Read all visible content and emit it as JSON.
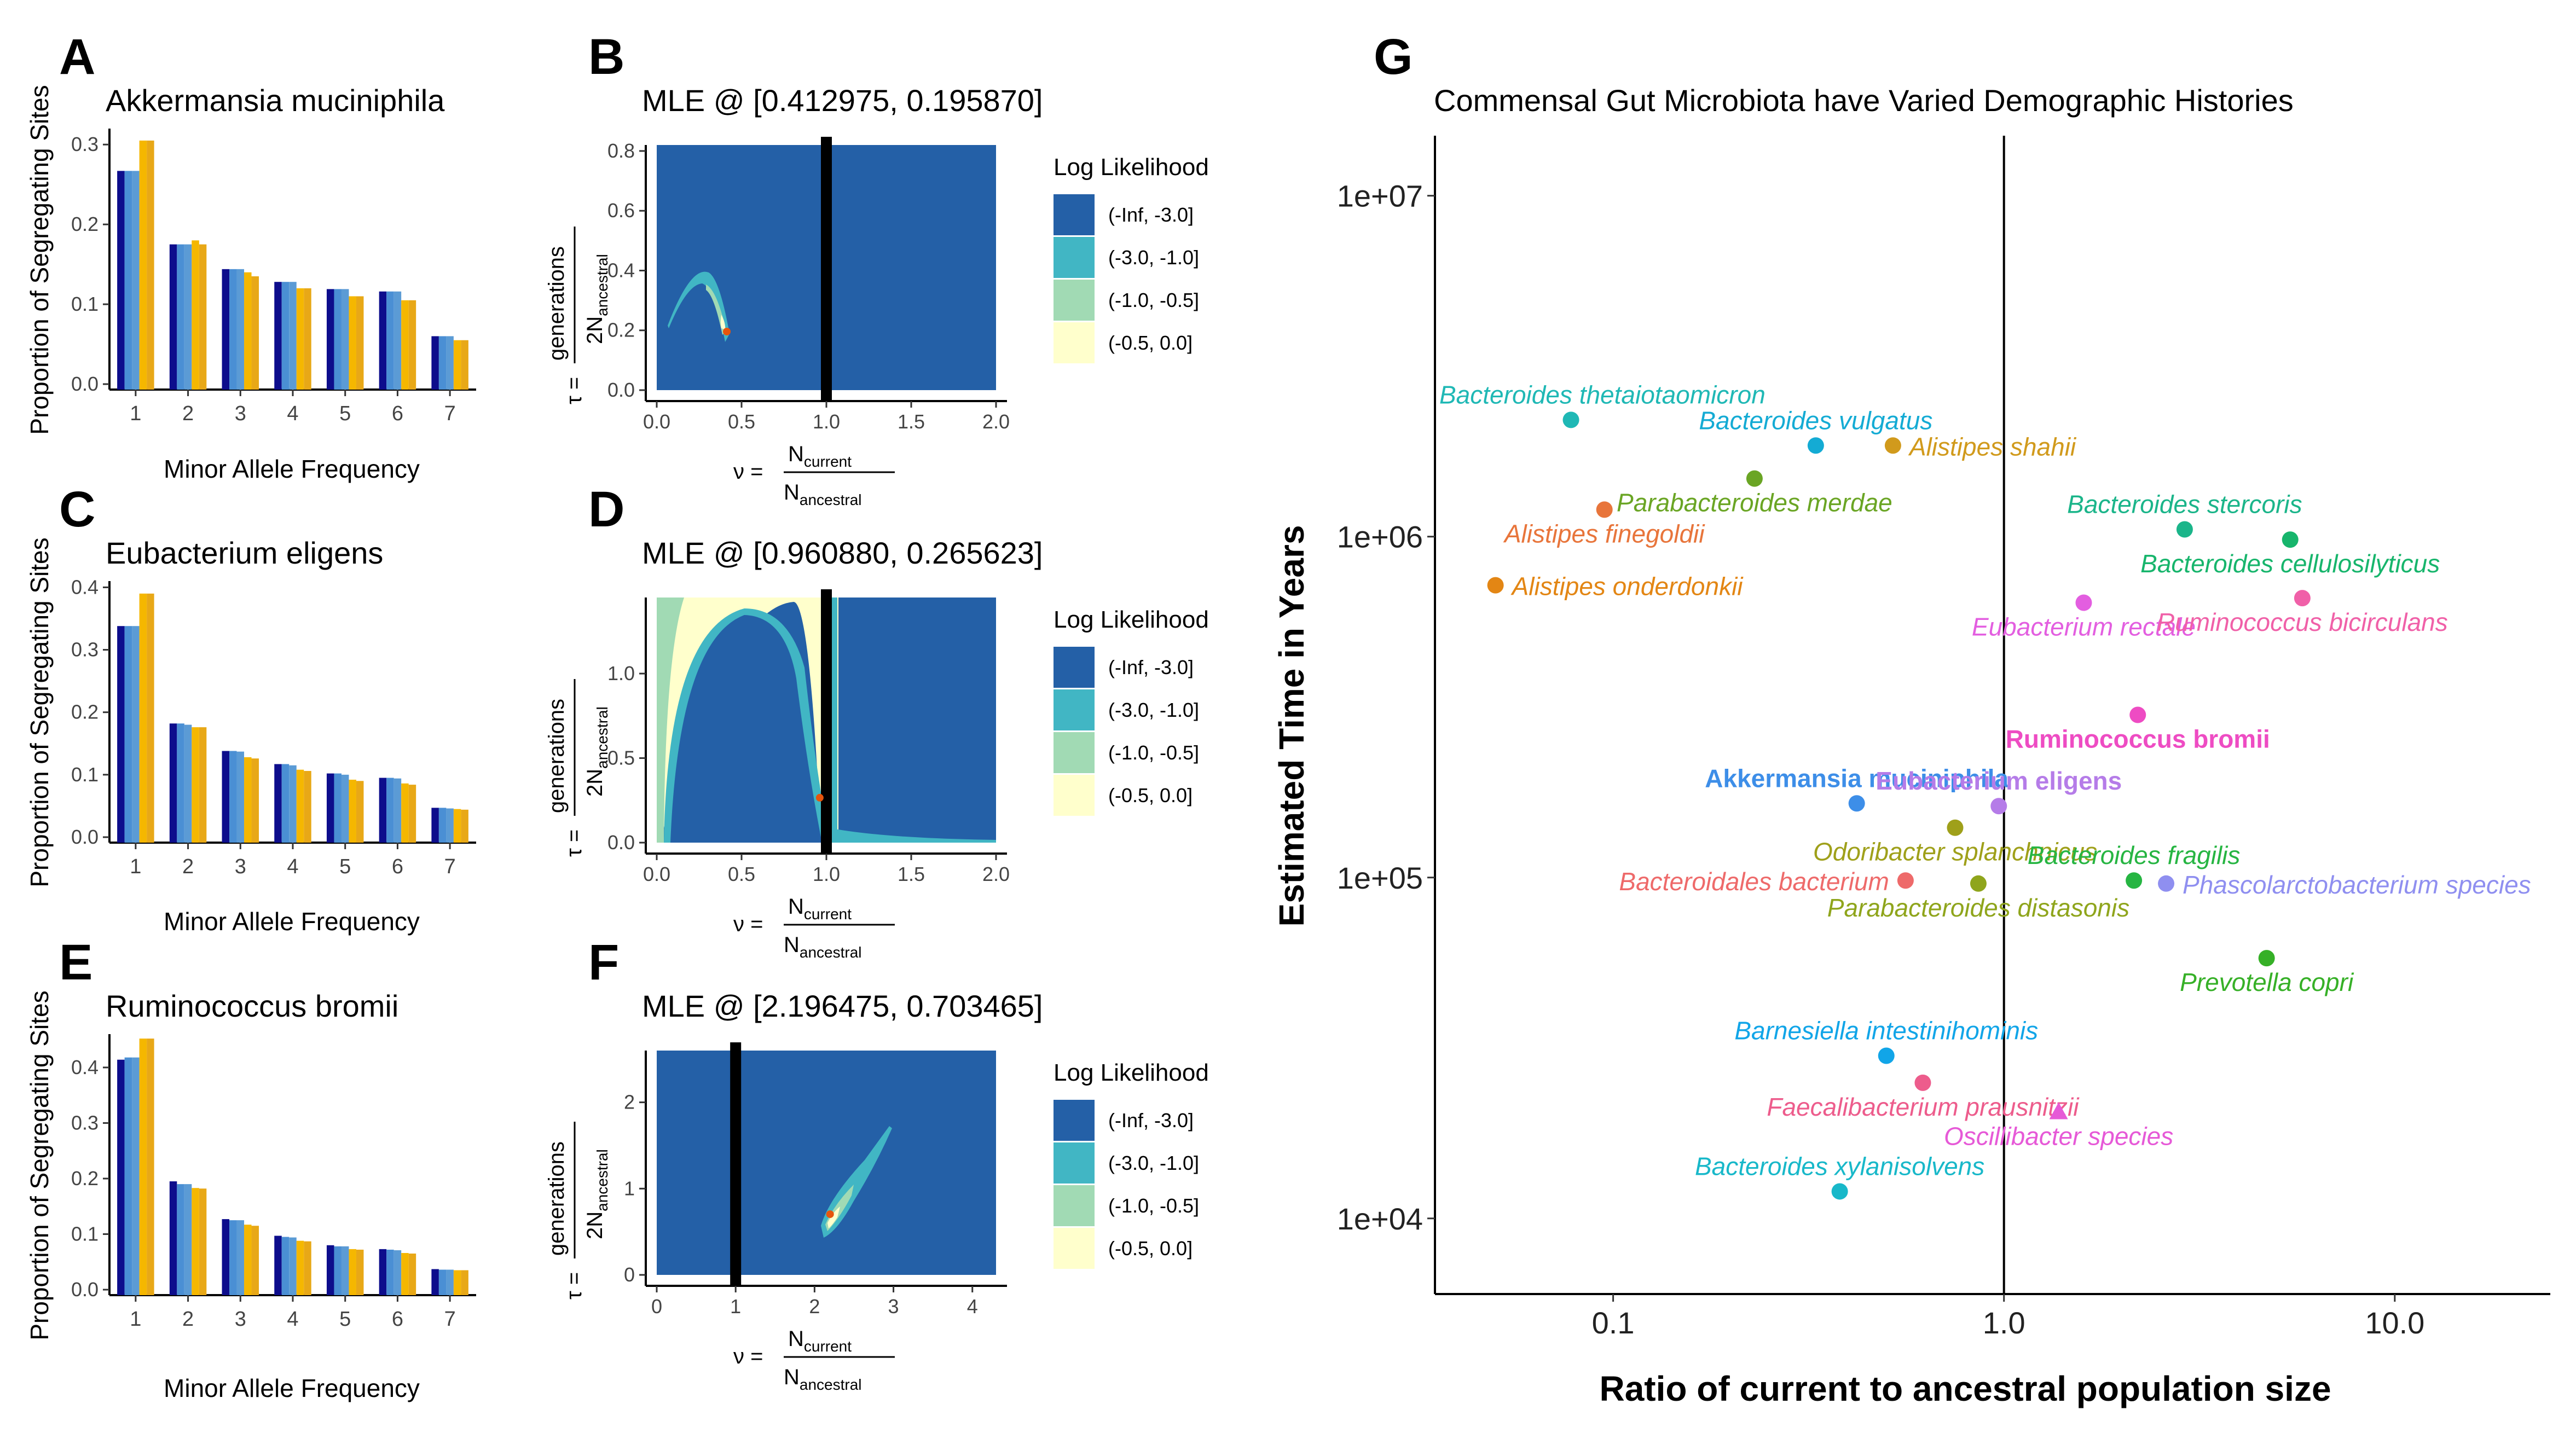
{
  "panels": {
    "A": {
      "letter": "A",
      "title": "Akkermansia muciniphila",
      "ylabel": "Proportion of Segregating Sites",
      "xlabel": "Minor Allele Frequency"
    },
    "B": {
      "letter": "B",
      "title": "MLE @ [0.412975, 0.195870]"
    },
    "C": {
      "letter": "C",
      "title": "Eubacterium eligens",
      "ylabel": "Proportion of Segregating Sites",
      "xlabel": "Minor Allele Frequency"
    },
    "D": {
      "letter": "D",
      "title": "MLE @ [0.960880, 0.265623]"
    },
    "E": {
      "letter": "E",
      "title": "Ruminococcus bromii",
      "ylabel": "Proportion of Segregating Sites",
      "xlabel": "Minor Allele Frequency"
    },
    "F": {
      "letter": "F",
      "title": "MLE @ [2.196475, 0.703465]"
    },
    "G": {
      "letter": "G",
      "title": "Commensal Gut Microbiota have Varied Demographic Histories"
    }
  },
  "likelihood_legend": {
    "title": "Log Likelihood",
    "entries": [
      {
        "label": "(-Inf, -3.0]",
        "color": "#2460a7"
      },
      {
        "label": "(-3.0, -1.0]",
        "color": "#41b6c4"
      },
      {
        "label": "(-1.0, -0.5]",
        "color": "#a1dab4"
      },
      {
        "label": "(-0.5, 0.0]",
        "color": "#ffffcc"
      }
    ]
  },
  "contour_axes": {
    "x_nu": "ν =",
    "x_num": "N",
    "x_num_sub": "current",
    "x_den": "N",
    "x_den_sub": "ancestral",
    "y_tau": "τ =",
    "y_num": "generations",
    "y_den": "2N",
    "y_den_sub": "ancestral"
  },
  "colors": {
    "bar_series": [
      "#0d0d8c",
      "#4a8fd4",
      "#5b9bd5",
      "#f5b700",
      "#e8a817"
    ],
    "vline": "#000000",
    "mle_point": "#e6550d"
  },
  "chart_data": [
    {
      "id": "A",
      "type": "bar",
      "title": "Akkermansia muciniphila",
      "xlabel": "Minor Allele Frequency",
      "ylabel": "Proportion of Segregating Sites",
      "categories": [
        "1",
        "2",
        "3",
        "4",
        "5",
        "6",
        "7"
      ],
      "series": [
        {
          "values": [
            0.267,
            0.175,
            0.144,
            0.128,
            0.119,
            0.116,
            0.06
          ]
        },
        {
          "values": [
            0.267,
            0.175,
            0.144,
            0.128,
            0.119,
            0.116,
            0.06
          ]
        },
        {
          "values": [
            0.267,
            0.175,
            0.144,
            0.128,
            0.119,
            0.116,
            0.06
          ]
        },
        {
          "values": [
            0.305,
            0.18,
            0.14,
            0.12,
            0.11,
            0.105,
            0.055
          ]
        },
        {
          "values": [
            0.305,
            0.175,
            0.135,
            0.12,
            0.11,
            0.105,
            0.055
          ]
        }
      ],
      "yticks": [
        0.0,
        0.1,
        0.2,
        0.3
      ],
      "ylim": [
        0,
        0.32
      ]
    },
    {
      "id": "C",
      "type": "bar",
      "title": "Eubacterium eligens",
      "xlabel": "Minor Allele Frequency",
      "ylabel": "Proportion of Segregating Sites",
      "categories": [
        "1",
        "2",
        "3",
        "4",
        "5",
        "6",
        "7"
      ],
      "series": [
        {
          "values": [
            0.338,
            0.182,
            0.138,
            0.117,
            0.102,
            0.095,
            0.047
          ]
        },
        {
          "values": [
            0.338,
            0.182,
            0.138,
            0.117,
            0.102,
            0.095,
            0.047
          ]
        },
        {
          "values": [
            0.338,
            0.18,
            0.137,
            0.115,
            0.1,
            0.094,
            0.046
          ]
        },
        {
          "values": [
            0.39,
            0.176,
            0.128,
            0.108,
            0.092,
            0.086,
            0.045
          ]
        },
        {
          "values": [
            0.39,
            0.176,
            0.126,
            0.106,
            0.09,
            0.084,
            0.044
          ]
        }
      ],
      "yticks": [
        0.0,
        0.1,
        0.2,
        0.3,
        0.4
      ],
      "ylim": [
        0,
        0.41
      ]
    },
    {
      "id": "E",
      "type": "bar",
      "title": "Ruminococcus bromii",
      "xlabel": "Minor Allele Frequency",
      "ylabel": "Proportion of Segregating Sites",
      "categories": [
        "1",
        "2",
        "3",
        "4",
        "5",
        "6",
        "7"
      ],
      "series": [
        {
          "values": [
            0.414,
            0.195,
            0.127,
            0.097,
            0.08,
            0.073,
            0.037
          ]
        },
        {
          "values": [
            0.418,
            0.19,
            0.125,
            0.095,
            0.078,
            0.072,
            0.036
          ]
        },
        {
          "values": [
            0.418,
            0.19,
            0.125,
            0.094,
            0.078,
            0.071,
            0.036
          ]
        },
        {
          "values": [
            0.452,
            0.183,
            0.117,
            0.088,
            0.073,
            0.066,
            0.035
          ]
        },
        {
          "values": [
            0.452,
            0.182,
            0.115,
            0.087,
            0.072,
            0.065,
            0.035
          ]
        }
      ],
      "yticks": [
        0.0,
        0.1,
        0.2,
        0.3,
        0.4
      ],
      "ylim": [
        0,
        0.46
      ]
    },
    {
      "id": "B",
      "type": "heatmap",
      "title": "MLE @ [0.412975, 0.195870]",
      "xlim": [
        0,
        2.0
      ],
      "ylim": [
        0,
        0.82
      ],
      "xticks": [
        "0.0",
        "0.5",
        "1.0",
        "1.5",
        "2.0"
      ],
      "yticks": [
        "0.0",
        "0.2",
        "0.4",
        "0.6",
        "0.8"
      ],
      "vline": 1.0,
      "mle": [
        0.412975,
        0.19587
      ]
    },
    {
      "id": "D",
      "type": "heatmap",
      "title": "MLE @ [0.960880, 0.265623]",
      "xlim": [
        0,
        2.0
      ],
      "ylim": [
        0,
        1.45
      ],
      "xticks": [
        "0.0",
        "0.5",
        "1.0",
        "1.5",
        "2.0"
      ],
      "yticks": [
        "0.0",
        "0.5",
        "1.0"
      ],
      "vline": 1.0,
      "mle": [
        0.96088,
        0.265623
      ]
    },
    {
      "id": "F",
      "type": "heatmap",
      "title": "MLE @ [2.196475, 0.703465]",
      "xlim": [
        0,
        4.3
      ],
      "ylim": [
        0,
        2.6
      ],
      "xticks": [
        "0",
        "1",
        "2",
        "3",
        "4"
      ],
      "yticks": [
        "0",
        "1",
        "2"
      ],
      "vline": 1.0,
      "mle": [
        2.196475,
        0.703465
      ]
    },
    {
      "id": "G",
      "type": "scatter",
      "title": "Commensal Gut Microbiota have Varied Demographic Histories",
      "xlabel": "Ratio of current to ancestral population size",
      "ylabel": "Estimated Time in Years",
      "x_scale": "log",
      "y_scale": "log",
      "xlim": [
        0.035,
        25
      ],
      "ylim": [
        6000,
        15000000
      ],
      "xticks": [
        "0.1",
        "1.0",
        "10.0"
      ],
      "yticks": [
        "1e+04",
        "1e+05",
        "1e+06",
        "1e+07"
      ],
      "vline": 1.0,
      "points": [
        {
          "name": "Bacteroides thetaiotaomicron",
          "x": 0.078,
          "y": 2200000,
          "color": "#1fb8b5",
          "label_pos": "above",
          "marker": "circle",
          "bold": false
        },
        {
          "name": "Bacteroides vulgatus",
          "x": 0.33,
          "y": 1850000,
          "color": "#14abd4",
          "label_pos": "above",
          "marker": "circle",
          "bold": false
        },
        {
          "name": "Alistipes shahii",
          "x": 0.52,
          "y": 1850000,
          "color": "#d19a1c",
          "label_pos": "right",
          "marker": "circle",
          "bold": false
        },
        {
          "name": "Parabacteroides merdae",
          "x": 0.23,
          "y": 1480000,
          "color": "#6aa524",
          "label_pos": "below",
          "marker": "circle",
          "bold": false
        },
        {
          "name": "Alistipes finegoldii",
          "x": 0.095,
          "y": 1200000,
          "color": "#e8753b",
          "label_pos": "below",
          "marker": "circle",
          "bold": false
        },
        {
          "name": "Alistipes onderdonkii",
          "x": 0.05,
          "y": 720000,
          "color": "#e38614",
          "label_pos": "right",
          "marker": "circle",
          "bold": false
        },
        {
          "name": "Bacteroides stercoris",
          "x": 2.9,
          "y": 1050000,
          "color": "#1bb58a",
          "label_pos": "above",
          "marker": "circle",
          "bold": false
        },
        {
          "name": "Bacteroides cellulosilyticus",
          "x": 5.4,
          "y": 980000,
          "color": "#17b56c",
          "label_pos": "below",
          "marker": "circle",
          "bold": false
        },
        {
          "name": "Eubacterium rectale",
          "x": 1.6,
          "y": 640000,
          "color": "#e35ee0",
          "label_pos": "below",
          "marker": "circle",
          "bold": false
        },
        {
          "name": "Ruminococcus bicirculans",
          "x": 5.8,
          "y": 660000,
          "color": "#f060a8",
          "label_pos": "below",
          "marker": "circle",
          "bold": false
        },
        {
          "name": "Ruminococcus bromii",
          "x": 2.2,
          "y": 300000,
          "color": "#ee4cc3",
          "label_pos": "below",
          "marker": "circle",
          "bold": true
        },
        {
          "name": "Akkermansia muciniphila",
          "x": 0.42,
          "y": 165000,
          "color": "#3d8ee8",
          "label_pos": "above",
          "marker": "circle",
          "bold": true
        },
        {
          "name": "Eubacterium eligens",
          "x": 0.97,
          "y": 162000,
          "color": "#b57ce8",
          "label_pos": "above",
          "marker": "circle",
          "bold": true
        },
        {
          "name": "Odoribacter splanchnicus",
          "x": 0.75,
          "y": 140000,
          "color": "#9fa01a",
          "label_pos": "below",
          "marker": "circle",
          "bold": false
        },
        {
          "name": "Bacteroidales bacterium",
          "x": 0.56,
          "y": 98000,
          "color": "#ee6a6a",
          "label_pos": "left",
          "marker": "circle",
          "bold": false
        },
        {
          "name": "Parabacteroides distasonis",
          "x": 0.86,
          "y": 96000,
          "color": "#8fa51c",
          "label_pos": "below",
          "marker": "circle",
          "bold": false
        },
        {
          "name": "Bacteroides fragilis",
          "x": 2.15,
          "y": 98000,
          "color": "#26b542",
          "label_pos": "above",
          "marker": "circle",
          "bold": false
        },
        {
          "name": "Phascolarctobacterium species",
          "x": 2.6,
          "y": 96000,
          "color": "#8f8ff0",
          "label_pos": "right",
          "marker": "circle",
          "bold": false
        },
        {
          "name": "Prevotella copri",
          "x": 4.7,
          "y": 58000,
          "color": "#36b027",
          "label_pos": "below",
          "marker": "circle",
          "bold": false
        },
        {
          "name": "Barnesiella intestinihominis",
          "x": 0.5,
          "y": 30000,
          "color": "#11a5e8",
          "label_pos": "above",
          "marker": "circle",
          "bold": false
        },
        {
          "name": "Faecalibacterium prausnitzii",
          "x": 0.62,
          "y": 25000,
          "color": "#ed5c8c",
          "label_pos": "below",
          "marker": "circle",
          "bold": false
        },
        {
          "name": "Oscillibacter species",
          "x": 1.38,
          "y": 20500,
          "color": "#e659d7",
          "label_pos": "below",
          "marker": "triangle",
          "bold": false
        },
        {
          "name": "Bacteroides xylanisolvens",
          "x": 0.38,
          "y": 12000,
          "color": "#18b8c9",
          "label_pos": "above",
          "marker": "circle",
          "bold": false
        }
      ]
    }
  ]
}
